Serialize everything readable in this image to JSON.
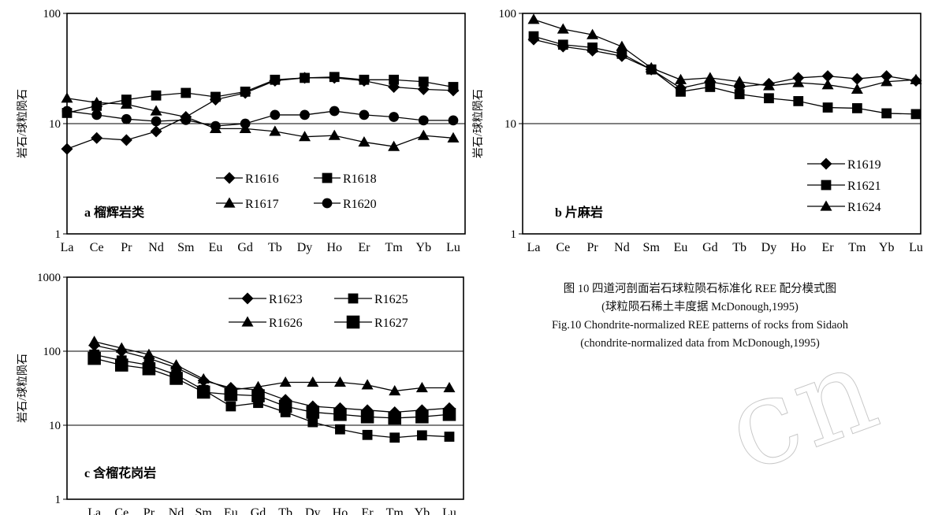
{
  "chart_data": [
    {
      "type": "line",
      "ylabel": "岩石/球粒陨石",
      "yscale": "log",
      "ylim": [
        1,
        100
      ],
      "yticks": [
        "1",
        "10",
        "100"
      ],
      "categories": [
        "La",
        "Ce",
        "Pr",
        "Nd",
        "Sm",
        "Eu",
        "Gd",
        "Tb",
        "Dy",
        "Ho",
        "Er",
        "Tm",
        "Yb",
        "Lu"
      ],
      "panel_label": "a 榴辉岩类",
      "legend_placement": "bottom-right",
      "series": [
        {
          "name": "R1616",
          "marker": "diamond",
          "values": [
            5.9,
            7.4,
            7.1,
            8.5,
            11.5,
            16.5,
            19,
            24.5,
            26,
            26,
            24.5,
            21.5,
            20.5,
            20
          ]
        },
        {
          "name": "R1618",
          "marker": "square",
          "values": [
            12.5,
            14.5,
            16.5,
            18,
            19,
            17.5,
            19.5,
            25,
            26,
            26.5,
            25,
            25,
            24,
            21.5
          ]
        },
        {
          "name": "R1617",
          "marker": "triangle",
          "values": [
            17,
            15.5,
            15,
            13,
            11.5,
            9,
            9,
            8.5,
            7.6,
            7.8,
            6.8,
            6.2,
            7.8,
            7.4
          ]
        },
        {
          "name": "R1620",
          "marker": "circle",
          "values": [
            13,
            12,
            11,
            10.5,
            10.8,
            9.5,
            10,
            12,
            12,
            13,
            12,
            11.5,
            10.7,
            10.7
          ]
        }
      ]
    },
    {
      "type": "line",
      "ylabel": "岩石/球粒陨石",
      "yscale": "log",
      "ylim": [
        1,
        100
      ],
      "yticks": [
        "1",
        "10",
        "100"
      ],
      "categories": [
        "La",
        "Ce",
        "Pr",
        "Nd",
        "Sm",
        "Eu",
        "Gd",
        "Tb",
        "Dy",
        "Ho",
        "Er",
        "Tm",
        "Yb",
        "Lu"
      ],
      "panel_label": "b 片麻岩",
      "legend_placement": "right",
      "series": [
        {
          "name": "R1619",
          "marker": "diamond",
          "values": [
            58,
            50,
            46,
            41,
            31,
            21,
            24,
            21.5,
            23,
            26,
            27,
            25.5,
            27,
            24.5
          ]
        },
        {
          "name": "R1621",
          "marker": "square",
          "values": [
            62,
            52,
            49,
            43,
            31,
            19.5,
            21.5,
            18.5,
            17,
            16,
            14,
            13.8,
            12.4,
            12.2
          ]
        },
        {
          "name": "R1624",
          "marker": "triangle",
          "values": [
            88,
            72,
            64,
            50,
            32,
            25,
            26,
            24,
            22,
            23.5,
            22.5,
            20.5,
            24,
            25
          ]
        }
      ]
    },
    {
      "type": "line",
      "ylabel": "岩石/球粒陨石",
      "yscale": "log",
      "ylim": [
        1,
        1000
      ],
      "yticks": [
        "1",
        "10",
        "100",
        "1000"
      ],
      "categories": [
        "La",
        "Ce",
        "Pr",
        "Nd",
        "Sm",
        "Eu",
        "Gd",
        "Tb",
        "Dy",
        "Ho",
        "Er",
        "Tm",
        "Yb",
        "Lu"
      ],
      "panel_label": "c 含榴花岗岩",
      "legend_placement": "top-right",
      "series": [
        {
          "name": "R1623",
          "marker": "diamond",
          "values": [
            120,
            100,
            80,
            60,
            40,
            32,
            30,
            22,
            18,
            17,
            16,
            15,
            16,
            17
          ]
        },
        {
          "name": "R1625",
          "marker": "square",
          "values": [
            90,
            75,
            65,
            48,
            30,
            18,
            20,
            15,
            11,
            8.8,
            7.4,
            6.8,
            7.3,
            7
          ]
        },
        {
          "name": "R1626",
          "marker": "triangle",
          "values": [
            135,
            110,
            90,
            65,
            42,
            30,
            33,
            38,
            38,
            38,
            35,
            29,
            32,
            32
          ]
        },
        {
          "name": "R1627",
          "marker": "square",
          "values": [
            80,
            65,
            58,
            43,
            28,
            26,
            25,
            18,
            15,
            14,
            13,
            12.5,
            13,
            14
          ]
        }
      ]
    }
  ],
  "caption": {
    "line1": "图 10 四道河剖面岩石球粒陨石标准化 REE 配分模式图",
    "line2": "(球粒陨石稀土丰度据 McDonough,1995)",
    "line3": "Fig.10 Chondrite-normalized REE patterns of rocks from Sidaoh",
    "line4": "(chondrite-normalized data from McDonough,1995)"
  },
  "watermark": "cn"
}
